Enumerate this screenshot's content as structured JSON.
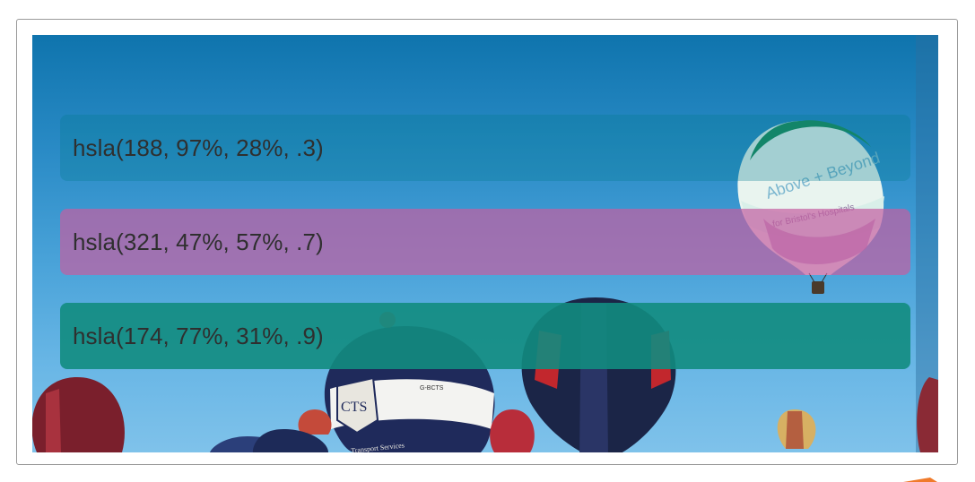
{
  "swatches": [
    {
      "label": "hsla(188, 97%, 28%, .3)",
      "color": "hsla(188, 97%, 28%, .3)"
    },
    {
      "label": "hsla(321, 47%, 57%, .7)",
      "color": "hsla(321, 47%, 57%, .7)"
    },
    {
      "label": "hsla(174, 77%, 31%, .9)",
      "color": "hsla(174, 77%, 31%, .9)"
    }
  ],
  "photo": {
    "subject": "hot-air-balloons-sky",
    "balloon_texts": [
      "Above + Beyond",
      "for Bristol's Hospitals",
      "CTS",
      "G-BCTS",
      "Transport Services"
    ]
  },
  "colors": {
    "frame_border": "#9a9a9a",
    "sky_top": "#0f74ad",
    "sky_bottom": "#7fc2ea",
    "accent": "#f07a2a"
  }
}
